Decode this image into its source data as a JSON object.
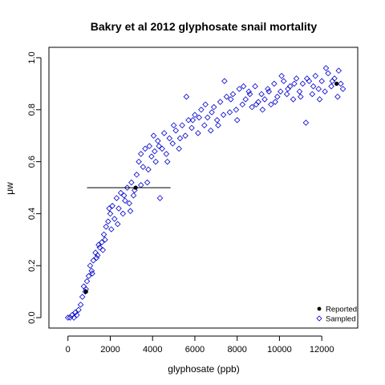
{
  "chart_data": {
    "type": "scatter",
    "title": "Bakry et al 2012 glyphosate snail mortality",
    "xlabel": "glyphosate (ppb)",
    "ylabel": "μw",
    "xlim": [
      -900,
      13700
    ],
    "ylim": [
      -0.04,
      1.04
    ],
    "x_ticks": [
      0,
      2000,
      4000,
      6000,
      8000,
      10000,
      12000
    ],
    "x_tick_labels": [
      "0",
      "2000",
      "4000",
      "6000",
      "8000",
      "10000",
      "12000"
    ],
    "y_ticks": [
      0.0,
      0.2,
      0.4,
      0.6,
      0.8,
      1.0
    ],
    "y_tick_labels": [
      "0.0",
      "0.2",
      "0.4",
      "0.6",
      "0.8",
      "1.0"
    ],
    "grid": false,
    "legend_position": "bottom-right",
    "reported_series": {
      "name": "Reported",
      "color": "#000000",
      "marker": "filled-circle",
      "points": [
        {
          "x": 850,
          "y": 0.1
        },
        {
          "x": 3200,
          "y": 0.5
        },
        {
          "x": 12700,
          "y": 0.9
        }
      ]
    },
    "reported_error_bar": {
      "y": 0.5,
      "x_low": 900,
      "x_high": 4850
    },
    "sampled_series": {
      "name": "Sampled",
      "color": "#0000cc",
      "marker": "open-diamond",
      "points": [
        [
          0,
          0.0
        ],
        [
          100,
          0.0
        ],
        [
          200,
          0.01
        ],
        [
          280,
          0.0
        ],
        [
          350,
          0.02
        ],
        [
          420,
          0.01
        ],
        [
          500,
          0.03
        ],
        [
          600,
          0.05
        ],
        [
          680,
          0.08
        ],
        [
          750,
          0.12
        ],
        [
          820,
          0.1
        ],
        [
          900,
          0.14
        ],
        [
          980,
          0.16
        ],
        [
          1050,
          0.2
        ],
        [
          1120,
          0.18
        ],
        [
          1200,
          0.22
        ],
        [
          1300,
          0.25
        ],
        [
          1400,
          0.24
        ],
        [
          1500,
          0.27
        ],
        [
          1600,
          0.29
        ],
        [
          1700,
          0.32
        ],
        [
          1800,
          0.35
        ],
        [
          1900,
          0.37
        ],
        [
          2000,
          0.4
        ],
        [
          2100,
          0.43
        ],
        [
          2200,
          0.38
        ],
        [
          2300,
          0.46
        ],
        [
          2400,
          0.42
        ],
        [
          2500,
          0.48
        ],
        [
          2600,
          0.4
        ],
        [
          2700,
          0.45
        ],
        [
          2800,
          0.5
        ],
        [
          2900,
          0.44
        ],
        [
          3000,
          0.52
        ],
        [
          3100,
          0.47
        ],
        [
          3250,
          0.55
        ],
        [
          3350,
          0.6
        ],
        [
          3450,
          0.63
        ],
        [
          3550,
          0.58
        ],
        [
          3650,
          0.65
        ],
        [
          3750,
          0.52
        ],
        [
          3850,
          0.66
        ],
        [
          3950,
          0.62
        ],
        [
          4050,
          0.7
        ],
        [
          4150,
          0.6
        ],
        [
          4250,
          0.68
        ],
        [
          4350,
          0.46
        ],
        [
          4450,
          0.65
        ],
        [
          4550,
          0.71
        ],
        [
          4650,
          0.63
        ],
        [
          4800,
          0.69
        ],
        [
          4950,
          0.67
        ],
        [
          5100,
          0.72
        ],
        [
          5250,
          0.65
        ],
        [
          5400,
          0.74
        ],
        [
          5550,
          0.7
        ],
        [
          5700,
          0.76
        ],
        [
          5850,
          0.73
        ],
        [
          6000,
          0.78
        ],
        [
          6150,
          0.71
        ],
        [
          6300,
          0.8
        ],
        [
          6450,
          0.74
        ],
        [
          6600,
          0.77
        ],
        [
          6750,
          0.72
        ],
        [
          6900,
          0.81
        ],
        [
          7050,
          0.76
        ],
        [
          7200,
          0.83
        ],
        [
          7350,
          0.78
        ],
        [
          7500,
          0.85
        ],
        [
          7650,
          0.79
        ],
        [
          7800,
          0.86
        ],
        [
          7950,
          0.8
        ],
        [
          8100,
          0.88
        ],
        [
          8250,
          0.82
        ],
        [
          8400,
          0.84
        ],
        [
          8550,
          0.87
        ],
        [
          8700,
          0.81
        ],
        [
          8850,
          0.89
        ],
        [
          9000,
          0.83
        ],
        [
          9150,
          0.86
        ],
        [
          9300,
          0.84
        ],
        [
          9450,
          0.88
        ],
        [
          9600,
          0.82
        ],
        [
          9750,
          0.9
        ],
        [
          9900,
          0.85
        ],
        [
          10050,
          0.87
        ],
        [
          10200,
          0.91
        ],
        [
          10350,
          0.86
        ],
        [
          10500,
          0.89
        ],
        [
          10650,
          0.84
        ],
        [
          10800,
          0.92
        ],
        [
          10950,
          0.87
        ],
        [
          11100,
          0.9
        ],
        [
          11250,
          0.75
        ],
        [
          11400,
          0.91
        ],
        [
          11550,
          0.86
        ],
        [
          11700,
          0.93
        ],
        [
          11850,
          0.88
        ],
        [
          12000,
          0.91
        ],
        [
          12150,
          0.87
        ],
        [
          12300,
          0.94
        ],
        [
          12450,
          0.89
        ],
        [
          12600,
          0.92
        ],
        [
          12750,
          0.85
        ],
        [
          12900,
          0.9
        ],
        [
          13000,
          0.88
        ],
        [
          2350,
          0.36
        ],
        [
          2650,
          0.47
        ],
        [
          2950,
          0.41
        ],
        [
          3150,
          0.49
        ],
        [
          3450,
          0.51
        ],
        [
          3800,
          0.57
        ],
        [
          4100,
          0.64
        ],
        [
          4300,
          0.66
        ],
        [
          4700,
          0.6
        ],
        [
          5000,
          0.74
        ],
        [
          5300,
          0.69
        ],
        [
          5600,
          0.85
        ],
        [
          5900,
          0.76
        ],
        [
          6200,
          0.77
        ],
        [
          6500,
          0.82
        ],
        [
          6800,
          0.79
        ],
        [
          7100,
          0.74
        ],
        [
          7400,
          0.91
        ],
        [
          7700,
          0.84
        ],
        [
          8000,
          0.76
        ],
        [
          8300,
          0.89
        ],
        [
          8600,
          0.86
        ],
        [
          8900,
          0.82
        ],
        [
          9200,
          0.8
        ],
        [
          9500,
          0.87
        ],
        [
          9800,
          0.83
        ],
        [
          10100,
          0.93
        ],
        [
          10400,
          0.88
        ],
        [
          10700,
          0.9
        ],
        [
          11000,
          0.85
        ],
        [
          11300,
          0.92
        ],
        [
          11600,
          0.89
        ],
        [
          11900,
          0.84
        ],
        [
          12200,
          0.96
        ],
        [
          12500,
          0.91
        ],
        [
          12800,
          0.95
        ],
        [
          1150,
          0.17
        ],
        [
          1450,
          0.28
        ],
        [
          1750,
          0.3
        ],
        [
          2050,
          0.34
        ],
        [
          1950,
          0.42
        ],
        [
          1650,
          0.26
        ],
        [
          1350,
          0.23
        ],
        [
          850,
          0.11
        ]
      ]
    }
  }
}
